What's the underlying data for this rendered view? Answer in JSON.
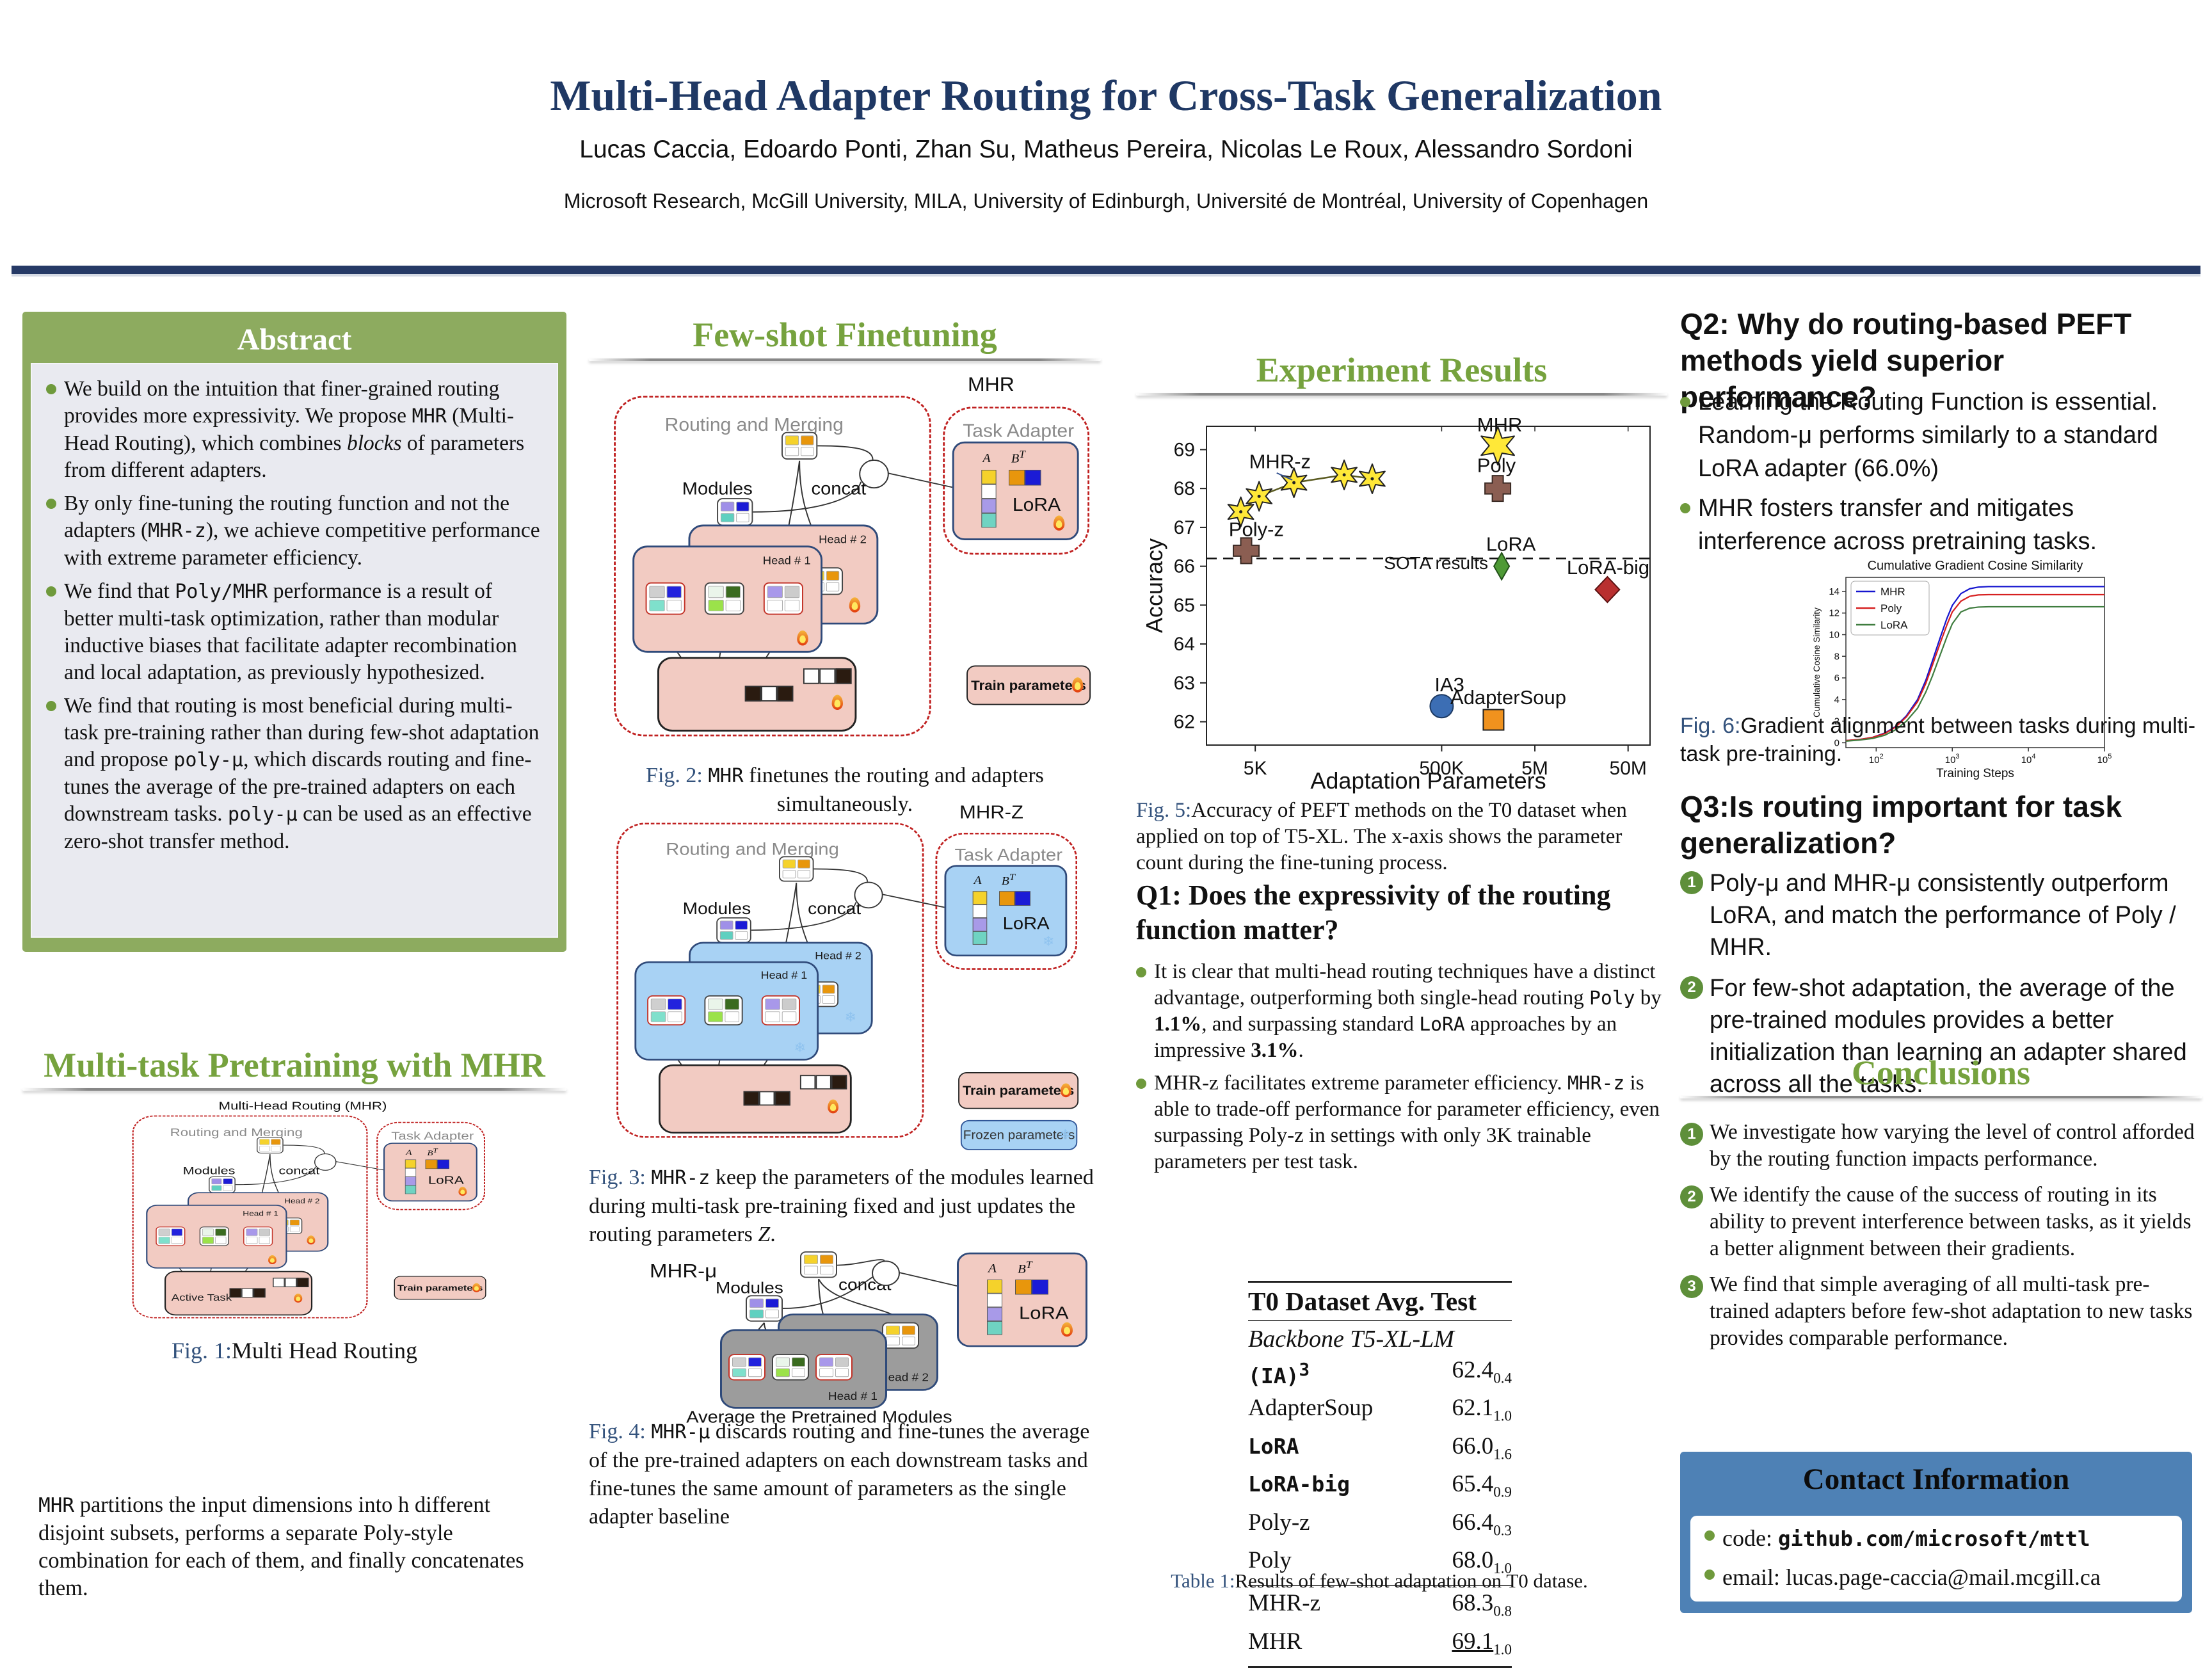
{
  "header": {
    "title": "Multi-Head Adapter Routing for Cross-Task Generalization",
    "authors": "Lucas Caccia, Edoardo Ponti, Zhan Su, Matheus Pereira, Nicolas Le Roux, Alessandro Sordoni",
    "affiliations": "Microsoft Research, McGill University, MILA, University of Edinburgh, Université de Montréal, University of Copenhagen"
  },
  "colors": {
    "title_navy": "#1F3864",
    "bar_navy": "#263A66",
    "heading_green": "#76A23E",
    "abstract_green": "#8DAB5F",
    "panel_gray": "#E9EAF0",
    "bullet_green": "#6F9A3C",
    "contact_blue": "#4E81B5",
    "dashed_red": "#C02020",
    "module_pink": "#F2CBC2",
    "frozen_blue": "#A8D2F4",
    "pretrained_gray": "#9C9C9C"
  },
  "icons": {
    "train": "flame-icon",
    "frozen": "snowflake-icon"
  },
  "abstract": {
    "title": "Abstract",
    "bullets": [
      [
        {
          "t": "We build on the intuition that finer-grained routing provides more expressivity. We propose "
        },
        {
          "t": "MHR",
          "s": "code"
        },
        {
          "t": " (Multi-Head Routing), which combines "
        },
        {
          "t": "blocks",
          "s": "italic"
        },
        {
          "t": " of parameters from different adapters."
        }
      ],
      [
        {
          "t": "By only fine-tuning the routing function and not the adapters ("
        },
        {
          "t": "MHR-z",
          "s": "code"
        },
        {
          "t": "), we achieve competitive performance with extreme parameter efficiency."
        }
      ],
      [
        {
          "t": "We find that "
        },
        {
          "t": "Poly/MHR",
          "s": "code"
        },
        {
          "t": " performance is a result of better multi-task optimization, rather than modular inductive biases that facilitate adapter recombination and local adaptation, as previously hypothesized."
        }
      ],
      [
        {
          "t": "We find that routing is most beneficial during multi-task pre-training rather than during few-shot adaptation and propose "
        },
        {
          "t": "poly-μ",
          "s": "code"
        },
        {
          "t": ", which discards routing and fine-tunes the average of the pre-trained adapters on each downstream tasks. "
        },
        {
          "t": "poly-μ",
          "s": "code"
        },
        {
          "t": " can be used as an effective zero-shot transfer method."
        }
      ]
    ]
  },
  "sections": {
    "pretraining_title": "Multi-task Pretraining with MHR",
    "fewshot_title": "Few-shot Finetuning",
    "results_title": "Experiment Results",
    "conclusions_title": "Conclusions"
  },
  "pretraining_body": [
    {
      "t": "MHR",
      "s": "code"
    },
    {
      "t": " partitions the input dimensions into h different disjoint subsets, performs a separate Poly-style combination for each of them, and finally concatenates them."
    }
  ],
  "diagram_labels": {
    "mhr_full": "Multi-Head Routing (MHR)",
    "mhr": "MHR",
    "mhr_z": "MHR-Z",
    "mhr_mu": "MHR-μ",
    "routing_merging": "Routing and Merging",
    "task_adapter": "Task Adapter",
    "modules": "Modules",
    "concat": "concat",
    "head1": "Head # 1",
    "head2": "Head # 2",
    "active_task": "Active Task",
    "lora": "LoRA",
    "A_label": "A",
    "B_label": "B",
    "T_sup": "T",
    "train_params": "Train parameters",
    "frozen_params": "Frozen parameters",
    "avg_pretrained": "Average the Pretrained Modules"
  },
  "figures": {
    "fig1": {
      "prefix": "Fig. 1:",
      "caption": [
        {
          "t": "Multi Head Routing"
        }
      ]
    },
    "fig2": {
      "prefix": "Fig. 2: ",
      "caption": [
        {
          "t": "MHR",
          "s": "code"
        },
        {
          "t": " finetunes the routing and adapters simultaneously."
        }
      ]
    },
    "fig3": {
      "prefix": "Fig. 3: ",
      "caption": [
        {
          "t": "MHR-z",
          "s": "code"
        },
        {
          "t": " keep the parameters of the modules learned during multi-task pre-training fixed and just updates the routing parameters "
        },
        {
          "t": "Z",
          "s": "italic"
        },
        {
          "t": "."
        }
      ]
    },
    "fig4": {
      "prefix": "Fig. 4: ",
      "caption": [
        {
          "t": "MHR-μ",
          "s": "code"
        },
        {
          "t": " discards routing and fine-tunes the average of the pre-trained adapters on each downstream tasks and fine-tunes the same amount of parameters as the single adapter baseline"
        }
      ]
    },
    "fig5": {
      "prefix": "Fig. 5:",
      "caption": [
        {
          "t": "Accuracy of PEFT methods on the T0 dataset when applied on top of T5-XL. The x-axis shows the parameter count during the fine-tuning process."
        }
      ]
    },
    "fig6": {
      "prefix": "Fig. 6:",
      "caption": [
        {
          "t": "Gradient alignment between tasks during multi-task pre-training."
        }
      ]
    }
  },
  "q1": {
    "title": "Q1:  Does the expressivity of the routing function matter?",
    "bullets": [
      [
        {
          "t": "It is clear that multi-head routing techniques have a distinct advantage, outperforming both single-head routing "
        },
        {
          "t": "Poly",
          "s": "code"
        },
        {
          "t": " by "
        },
        {
          "t": "1.1%",
          "s": "bold"
        },
        {
          "t": ", and surpassing standard "
        },
        {
          "t": "LoRA",
          "s": "code"
        },
        {
          "t": " approaches by an impressive "
        },
        {
          "t": "3.1%",
          "s": "bold"
        },
        {
          "t": "."
        }
      ],
      [
        {
          "t": "MHR-z facilitates extreme parameter efficiency. "
        },
        {
          "t": "MHR-z",
          "s": "code"
        },
        {
          "t": " is able to trade-off performance for parameter efficiency, even surpassing Poly-z in settings with only 3K trainable parameters per test task."
        }
      ]
    ]
  },
  "q2": {
    "title": "Q2: Why do routing-based PEFT methods yield superior performance?",
    "bullets": [
      [
        {
          "t": "Learning the Routing Function is essential. Random-μ performs similarly to a standard LoRA adapter (66.0%)"
        }
      ],
      [
        {
          "t": "MHR fosters transfer and mitigates interference across pretraining tasks."
        }
      ]
    ]
  },
  "q3": {
    "title": "Q3:Is routing important for task generalization?",
    "items": [
      {
        "num": "1",
        "segments": [
          {
            "t": "Poly-μ and MHR-μ consistently outperform LoRA, and match the performance of Poly / MHR."
          }
        ]
      },
      {
        "num": "2",
        "segments": [
          {
            "t": "For few-shot adaptation, the average of the pre-trained modules provides a better initialization than learning an adapter shared across all the tasks."
          }
        ]
      }
    ]
  },
  "conclusions": {
    "items": [
      {
        "num": "1",
        "segments": [
          {
            "t": "We investigate how varying the level of control afforded by the routing function impacts performance."
          }
        ]
      },
      {
        "num": "2",
        "segments": [
          {
            "t": "We identify the cause of the success of routing in its ability to prevent interference between tasks, as it yields a better alignment between their gradients."
          }
        ]
      },
      {
        "num": "3",
        "segments": [
          {
            "t": "We find that simple averaging of all multi-task pre-trained adapters before few-shot adaptation to new tasks provides comparable performance."
          }
        ]
      }
    ]
  },
  "contact": {
    "title": "Contact Information",
    "bullets": [
      [
        {
          "t": "code: "
        },
        {
          "t": "github.com/microsoft/mttl",
          "s": "code-bold"
        }
      ],
      [
        {
          "t": "email: lucas.page-caccia@mail.mcgill.ca"
        }
      ]
    ]
  },
  "table": {
    "title": "T0 Dataset Avg. Test",
    "subtitle": "Backbone T5-XL-LM",
    "caption_prefix": "Table 1:",
    "caption": "Results of few-shot adaptation on T0 datase.",
    "groups": [
      {
        "rows": [
          {
            "m": "(IA)",
            "sup": "3",
            "st": "code",
            "v": "62.4",
            "sb": "0.4"
          },
          {
            "m": "AdapterSoup",
            "st": "serif",
            "v": "62.1",
            "sb": "1.0"
          },
          {
            "m": "LoRA",
            "st": "code",
            "v": "66.0",
            "sb": "1.6"
          },
          {
            "m": "LoRA-big",
            "st": "code",
            "v": "65.4",
            "sb": "0.9"
          },
          {
            "m": "Poly-z",
            "st": "serif",
            "v": "66.4",
            "sb": "0.3"
          },
          {
            "m": "Poly",
            "st": "serif",
            "v": "68.0",
            "sb": "1.0"
          }
        ]
      },
      {
        "rows": [
          {
            "m": "MHR-z",
            "st": "serif",
            "v": "68.3",
            "sb": "0.8"
          },
          {
            "m": "MHR",
            "st": "serif",
            "v": "69.1",
            "sb": "1.0",
            "u": true
          }
        ]
      }
    ]
  },
  "chart_data": [
    {
      "id": "fig5",
      "type": "scatter",
      "xlabel": "Adaptation Parameters",
      "ylabel": "Accuracy",
      "x_scale": "log",
      "xlim": [
        1500,
        86000000
      ],
      "ylim": [
        61.4,
        69.6
      ],
      "x_ticks": [
        {
          "v": 5000,
          "label": "5K"
        },
        {
          "v": 500000,
          "label": "500K"
        },
        {
          "v": 5000000,
          "label": "5M"
        },
        {
          "v": 50000000,
          "label": "50M"
        }
      ],
      "y_ticks": [
        62,
        63,
        64,
        65,
        66,
        67,
        68,
        69
      ],
      "sota_line": {
        "y": 66.2,
        "label": "SOTA results",
        "label_xy": [
          120000,
          65.93
        ]
      },
      "series": [
        {
          "name": "MHR-z",
          "marker": "star",
          "color": "#FFE838",
          "line": true,
          "points": [
            [
              3500,
              67.4
            ],
            [
              5500,
              67.8
            ],
            [
              13000,
              68.15
            ],
            [
              45000,
              68.35
            ],
            [
              90000,
              68.25
            ]
          ],
          "label_xy": [
            4300,
            68.52
          ],
          "pointer": [
            [
              8500,
              68.4
            ],
            [
              12500,
              68.22
            ]
          ]
        },
        {
          "name": "MHR",
          "marker": "star",
          "color": "#FFE838",
          "size": 1.3,
          "points": [
            [
              2000000,
              69.1
            ]
          ],
          "label_xy": [
            1200000,
            69.47
          ]
        },
        {
          "name": "Poly",
          "marker": "plus",
          "color": "#8B5E52",
          "points": [
            [
              2000000,
              68.0
            ]
          ],
          "label_xy": [
            1200000,
            68.42
          ]
        },
        {
          "name": "Poly-z",
          "marker": "plus",
          "color": "#8B5E52",
          "points": [
            [
              4000,
              66.4
            ]
          ],
          "label_xy": [
            2600,
            66.78
          ]
        },
        {
          "name": "LoRA",
          "marker": "diamond-thin",
          "color": "#4E9A35",
          "points": [
            [
              2200000,
              66.0
            ]
          ],
          "label_xy": [
            1500000,
            66.4
          ]
        },
        {
          "name": "LoRA-big",
          "marker": "diamond",
          "color": "#B93030",
          "points": [
            [
              30000000,
              65.4
            ]
          ],
          "label_xy": [
            11000000,
            65.8
          ]
        },
        {
          "name": "IA3",
          "marker": "circle",
          "color": "#3C6EB4",
          "points": [
            [
              500000,
              62.4
            ]
          ],
          "label_xy": [
            420000,
            62.78
          ]
        },
        {
          "name": "AdapterSoup",
          "marker": "square",
          "color": "#F0921E",
          "points": [
            [
              1800000,
              62.05
            ]
          ],
          "label_xy": [
            620000,
            62.45
          ]
        }
      ]
    },
    {
      "id": "fig6",
      "type": "line",
      "title": "Cumulative Gradient Cosine Similarity",
      "xlabel": "Training Steps",
      "ylabel": "Cumulative Cosine Similarity",
      "x_scale": "log",
      "xlim": [
        40,
        100000
      ],
      "ylim": [
        -0.45,
        15.3
      ],
      "x_ticks": [
        {
          "v": 100,
          "label": "10^2"
        },
        {
          "v": 1000,
          "label": "10^3"
        },
        {
          "v": 10000,
          "label": "10^4"
        },
        {
          "v": 100000,
          "label": "10^5"
        }
      ],
      "y_ticks": [
        0,
        2,
        4,
        6,
        8,
        10,
        12,
        14
      ],
      "legend": [
        "MHR",
        "Poly",
        "LoRA"
      ],
      "legend_position": "upper left",
      "series": [
        {
          "name": "MHR",
          "color": "#1515CF",
          "x": [
            40,
            60,
            90,
            130,
            180,
            250,
            350,
            450,
            550,
            700,
            850,
            1000,
            1300,
            1700,
            2200,
            3000,
            10000,
            100000
          ],
          "y": [
            0.2,
            0.3,
            0.5,
            0.9,
            1.5,
            2.5,
            4.0,
            5.8,
            7.6,
            9.8,
            11.5,
            12.7,
            13.8,
            14.25,
            14.4,
            14.45,
            14.45,
            14.45
          ]
        },
        {
          "name": "Poly",
          "color": "#D62020",
          "x": [
            40,
            60,
            90,
            130,
            180,
            250,
            350,
            450,
            550,
            700,
            850,
            1000,
            1300,
            1700,
            2200,
            3000,
            10000,
            100000
          ],
          "y": [
            0.2,
            0.3,
            0.5,
            0.85,
            1.45,
            2.4,
            3.8,
            5.5,
            7.2,
            9.3,
            10.9,
            12.1,
            13.1,
            13.55,
            13.68,
            13.7,
            13.7,
            13.7
          ]
        },
        {
          "name": "LoRA",
          "color": "#3F7D3F",
          "x": [
            40,
            60,
            90,
            130,
            180,
            250,
            350,
            450,
            550,
            700,
            850,
            1000,
            1300,
            1700,
            2200,
            3000,
            10000,
            100000
          ],
          "y": [
            0.15,
            0.25,
            0.4,
            0.7,
            1.2,
            2.0,
            3.2,
            4.7,
            6.2,
            8.2,
            9.8,
            11.0,
            12.1,
            12.45,
            12.55,
            12.58,
            12.58,
            12.58
          ]
        }
      ]
    }
  ]
}
